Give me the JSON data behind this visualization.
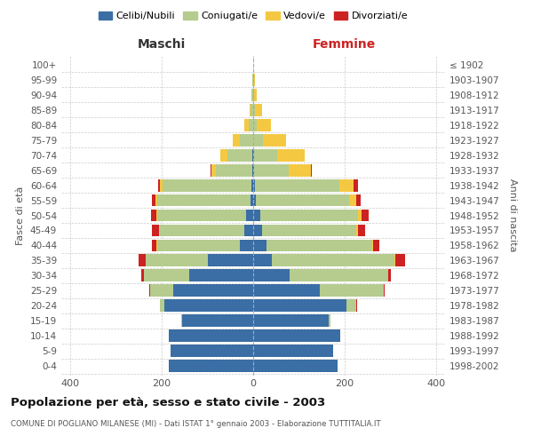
{
  "age_groups": [
    "0-4",
    "5-9",
    "10-14",
    "15-19",
    "20-24",
    "25-29",
    "30-34",
    "35-39",
    "40-44",
    "45-49",
    "50-54",
    "55-59",
    "60-64",
    "65-69",
    "70-74",
    "75-79",
    "80-84",
    "85-89",
    "90-94",
    "95-99",
    "100+"
  ],
  "birth_years": [
    "1998-2002",
    "1993-1997",
    "1988-1992",
    "1983-1987",
    "1978-1982",
    "1973-1977",
    "1968-1972",
    "1963-1967",
    "1958-1962",
    "1953-1957",
    "1948-1952",
    "1943-1947",
    "1938-1942",
    "1933-1937",
    "1928-1932",
    "1923-1927",
    "1918-1922",
    "1913-1917",
    "1908-1912",
    "1903-1907",
    "≤ 1902"
  ],
  "maschi": {
    "celibi": [
      185,
      180,
      185,
      155,
      195,
      175,
      140,
      100,
      30,
      20,
      15,
      5,
      4,
      2,
      2,
      0,
      0,
      0,
      0,
      0,
      0
    ],
    "coniugati": [
      0,
      0,
      0,
      2,
      10,
      50,
      100,
      135,
      180,
      185,
      195,
      205,
      195,
      80,
      55,
      30,
      10,
      5,
      3,
      1,
      0
    ],
    "vedovi": [
      0,
      0,
      0,
      0,
      0,
      0,
      0,
      0,
      1,
      1,
      2,
      3,
      5,
      10,
      15,
      15,
      10,
      3,
      1,
      0,
      0
    ],
    "divorziati": [
      0,
      0,
      0,
      0,
      0,
      2,
      5,
      15,
      10,
      15,
      12,
      8,
      5,
      2,
      0,
      0,
      0,
      0,
      0,
      0,
      0
    ]
  },
  "femmine": {
    "nubili": [
      185,
      175,
      190,
      165,
      205,
      145,
      80,
      40,
      30,
      20,
      15,
      5,
      4,
      2,
      2,
      0,
      0,
      0,
      0,
      0,
      0
    ],
    "coniugate": [
      0,
      0,
      0,
      5,
      20,
      140,
      215,
      270,
      230,
      205,
      215,
      205,
      185,
      75,
      50,
      22,
      8,
      4,
      2,
      1,
      0
    ],
    "vedove": [
      0,
      0,
      0,
      0,
      0,
      1,
      1,
      2,
      2,
      5,
      8,
      15,
      30,
      50,
      60,
      50,
      30,
      15,
      5,
      2,
      0
    ],
    "divorziate": [
      0,
      0,
      0,
      0,
      2,
      2,
      5,
      20,
      15,
      15,
      15,
      10,
      10,
      2,
      0,
      0,
      0,
      0,
      0,
      0,
      0
    ]
  },
  "colors": {
    "celibi": "#3a6ea5",
    "coniugati": "#b5cc8e",
    "vedovi": "#f5c842",
    "divorziati": "#cc2222"
  },
  "xlim": 420,
  "title": "Popolazione per età, sesso e stato civile - 2003",
  "subtitle": "COMUNE DI POGLIANO MILANESE (MI) - Dati ISTAT 1° gennaio 2003 - Elaborazione TUTTITALIA.IT",
  "ylabel_left": "Fasce di età",
  "ylabel_right": "Anni di nascita",
  "xlabel_left": "Maschi",
  "xlabel_right": "Femmine"
}
